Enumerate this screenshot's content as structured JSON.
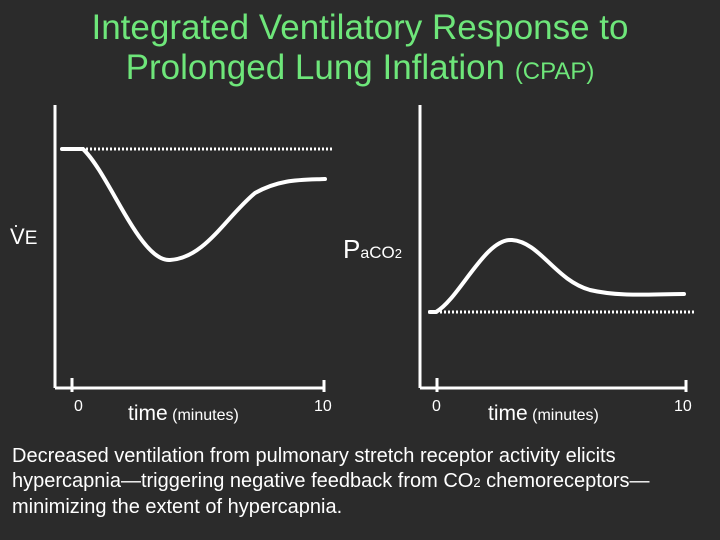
{
  "title": {
    "line1": "Integrated Ventilatory Response to",
    "line2": "Prolonged Lung Inflation",
    "line2_suffix": "(CPAP)"
  },
  "left_plot": {
    "ylabel_main": "V",
    "ylabel_sub": "E",
    "tick_start": "0",
    "tick_end": "10",
    "xlabel_main": "time",
    "xlabel_unit": "(minutes)"
  },
  "right_plot": {
    "ylabel_p": "P",
    "ylabel_a": "a",
    "ylabel_co": "CO",
    "ylabel_2": "2",
    "tick_start": "0",
    "tick_end": "10",
    "xlabel_main": "time",
    "xlabel_unit": "(minutes)"
  },
  "caption": {
    "part1": "Decreased ventilation from pulmonary stretch receptor activity elicits hypercapnia—triggering negative feedback from CO",
    "sub": "2",
    "part2": " chemoreceptors—minimizing the extent of hypercapnia."
  },
  "colors": {
    "background": "#2b2b2b",
    "title": "#6ee67a",
    "lines": "#ffffff"
  }
}
